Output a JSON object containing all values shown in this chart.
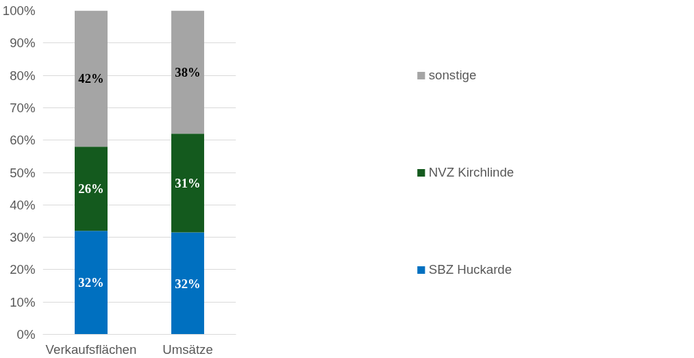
{
  "chart_data": {
    "type": "bar",
    "stacked": true,
    "categories": [
      "Verkaufsflächen",
      "Umsätze"
    ],
    "series": [
      {
        "name": "SBZ Huckarde",
        "color": "#0070c0",
        "values": [
          32,
          31.5
        ],
        "value_labels": [
          "32%",
          "32%"
        ]
      },
      {
        "name": "NVZ Kirchlinde",
        "color": "#145a1e",
        "values": [
          26,
          30.5
        ],
        "value_labels": [
          "26%",
          "31%"
        ]
      },
      {
        "name": "sonstige",
        "color": "#a5a5a5",
        "values": [
          42,
          38
        ],
        "value_labels": [
          "42%",
          "38%"
        ]
      }
    ],
    "ylim": [
      0,
      100
    ],
    "yticks": [
      {
        "value": 0,
        "label": "0%"
      },
      {
        "value": 10,
        "label": "10%"
      },
      {
        "value": 20,
        "label": "20%"
      },
      {
        "value": 30,
        "label": "30%"
      },
      {
        "value": 40,
        "label": "40%"
      },
      {
        "value": 50,
        "label": "50%"
      },
      {
        "value": 60,
        "label": "60%"
      },
      {
        "value": 70,
        "label": "70%"
      },
      {
        "value": 80,
        "label": "80%"
      },
      {
        "value": 90,
        "label": "90%"
      },
      {
        "value": 100,
        "label": "100%"
      }
    ],
    "grid": "y",
    "legend": "right"
  }
}
